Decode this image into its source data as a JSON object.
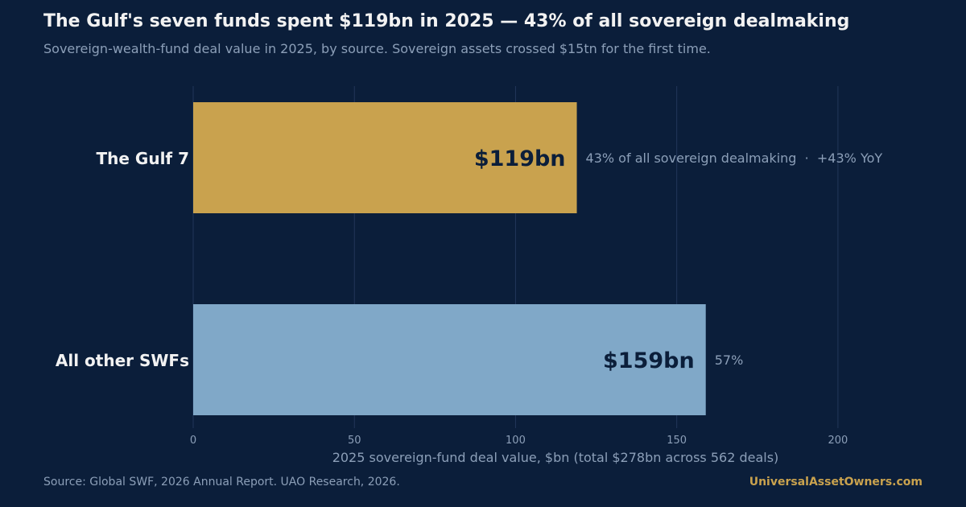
{
  "title": "The Gulf's seven funds spent $119bn in 2025 — 43% of all sovereign dealmaking",
  "subtitle": "Sovereign-wealth-fund deal value in 2025, by source. Sovereign assets crossed $15tn for the first time.",
  "source": "Source: Global SWF, 2026 Annual Report.   UAO Research, 2026.",
  "brand": "UniversalAssetOwners.com",
  "chart_data": {
    "type": "bar",
    "orientation": "horizontal",
    "categories": [
      "The Gulf 7",
      "All other SWFs"
    ],
    "values": [
      119,
      159
    ],
    "value_labels": [
      "$119bn",
      "$159bn"
    ],
    "annotations": [
      "43% of all sovereign dealmaking  ·  +43% YoY",
      "57%"
    ],
    "colors": [
      "#c9a24e",
      "#80a8c8"
    ],
    "xlabel": "2025 sovereign-fund deal value, $bn  (total $278bn across 562 deals)",
    "xlim": [
      0,
      220
    ],
    "xticks": [
      0,
      50,
      100,
      150,
      200
    ],
    "grid": true
  }
}
